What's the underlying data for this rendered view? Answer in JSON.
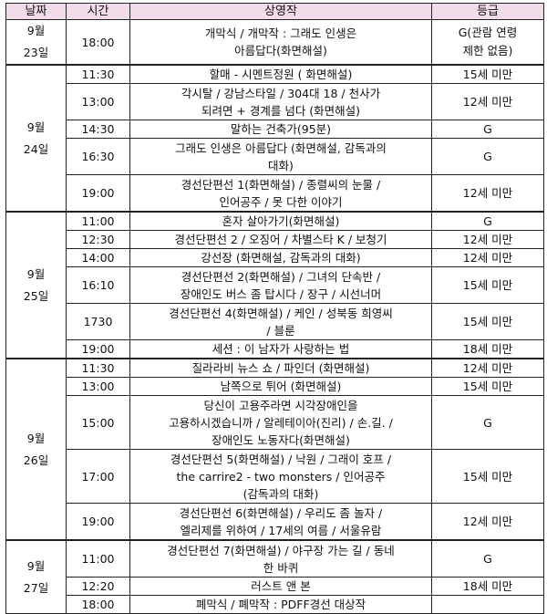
{
  "header": {
    "date": "날짜",
    "time": "시간",
    "title": "상영작",
    "rating": "등급"
  },
  "days": [
    {
      "date": [
        "9월",
        "23일"
      ],
      "shows": [
        {
          "time": "18:00",
          "title": [
            "개막식 / 개막작 : 그래도 인생은",
            "아름답다(화면해설)"
          ],
          "rating": [
            "G(관람 연령",
            "제한 없음)"
          ]
        }
      ]
    },
    {
      "date": [
        "9월",
        "24일"
      ],
      "shows": [
        {
          "time": "11:30",
          "title": [
            "할매 - 시멘트정원 ( 화면해설)"
          ],
          "rating": [
            "15세 미만"
          ]
        },
        {
          "time": "13:00",
          "title": [
            "각시탈 / 강남스타일 / 304대 18 / 천사가",
            "되려면 + 경계를 넘다 (화면해설)"
          ],
          "rating": [
            "12세 미만"
          ]
        },
        {
          "time": "14:30",
          "title": [
            "말하는 건축가(95분)"
          ],
          "rating": [
            "G"
          ]
        },
        {
          "time": "16:30",
          "title": [
            "그래도 인생은 아름답다 (화면해설, 감독과의",
            "대화)"
          ],
          "rating": [
            "G"
          ]
        },
        {
          "time": "19:00",
          "title": [
            "경선단편선 1(화면해설) / 종렬씨의 눈물 /",
            "인어공주 / 못 다한 이야기"
          ],
          "rating": [
            "12세 미만"
          ]
        }
      ]
    },
    {
      "date": [
        "9월",
        "25일"
      ],
      "shows": [
        {
          "time": "11:00",
          "title": [
            "혼자 살아가기(화면해설)"
          ],
          "rating": [
            "G"
          ]
        },
        {
          "time": "12:30",
          "title": [
            "경선단편선 2 / 오징어 / 차별스타 K / 보청기"
          ],
          "rating": [
            "12세 미만"
          ]
        },
        {
          "time": "14:00",
          "title": [
            "강선장 (화면해설, 감독과의 대화)"
          ],
          "rating": [
            "12세 미만"
          ]
        },
        {
          "time": "16:10",
          "title": [
            "경선단편선 2(화면해설) / 그녀의 단속반 /",
            "장애인도 버스 좀 탑시다 / 장구 / 시선너머"
          ],
          "rating": [
            "15세 미만"
          ]
        },
        {
          "time": "1730",
          "title": [
            "경선단편선 4(화면해설) / 케인 / 성북동 희영씨",
            "/ 블룬"
          ],
          "rating": [
            "15세 미만"
          ]
        },
        {
          "time": "19:00",
          "title": [
            "세션 : 이 남자가 사랑하는 법"
          ],
          "rating": [
            "18세 미만"
          ]
        }
      ]
    },
    {
      "date": [
        "9월",
        "26일"
      ],
      "shows": [
        {
          "time": "11:30",
          "title": [
            "질라라비 뉴스 쇼 / 파인더 (화면해설)"
          ],
          "rating": [
            "12세 미만"
          ]
        },
        {
          "time": "13:00",
          "title": [
            "남쪽으로 튀어 (화면해설)"
          ],
          "rating": [
            "15세 미만"
          ]
        },
        {
          "time": "15:00",
          "title": [
            "당신이 고용주라면 시각장애인을",
            "고용하시겠습니까 / 알레테이아(진리) / 손.길. /",
            "장애인도 노동자다(화면해설)"
          ],
          "rating": [
            "G"
          ]
        },
        {
          "time": "17:00",
          "title": [
            "경선단편선 5(화면해설) / 낙원 / 그래이 호프 /",
            "the carrire2 - two monsters / 인어공주",
            "(감독과의 대화)"
          ],
          "rating": [
            "15세 미만"
          ]
        },
        {
          "time": "19:00",
          "title": [
            "경선단편선 6(화면해설) / 우리도 좀 놀자 /",
            "엘리제를 위하여 / 17세의 여름 / 서울유람"
          ],
          "rating": [
            "12세 미만"
          ]
        }
      ]
    },
    {
      "date": [
        "9월",
        "27일"
      ],
      "shows": [
        {
          "time": "11:00",
          "title": [
            "경선단편선 7(화면해설) / 야구장 가는 길 / 동네",
            "한 바퀴"
          ],
          "rating": [
            "G"
          ]
        },
        {
          "time": "12:20",
          "title": [
            "러스트 앤 본"
          ],
          "rating": [
            "18세 미만"
          ]
        },
        {
          "time": "18:00",
          "title": [
            "폐막식 / 폐막작 : PDFF경선 대상작"
          ],
          "rating": []
        }
      ]
    }
  ]
}
